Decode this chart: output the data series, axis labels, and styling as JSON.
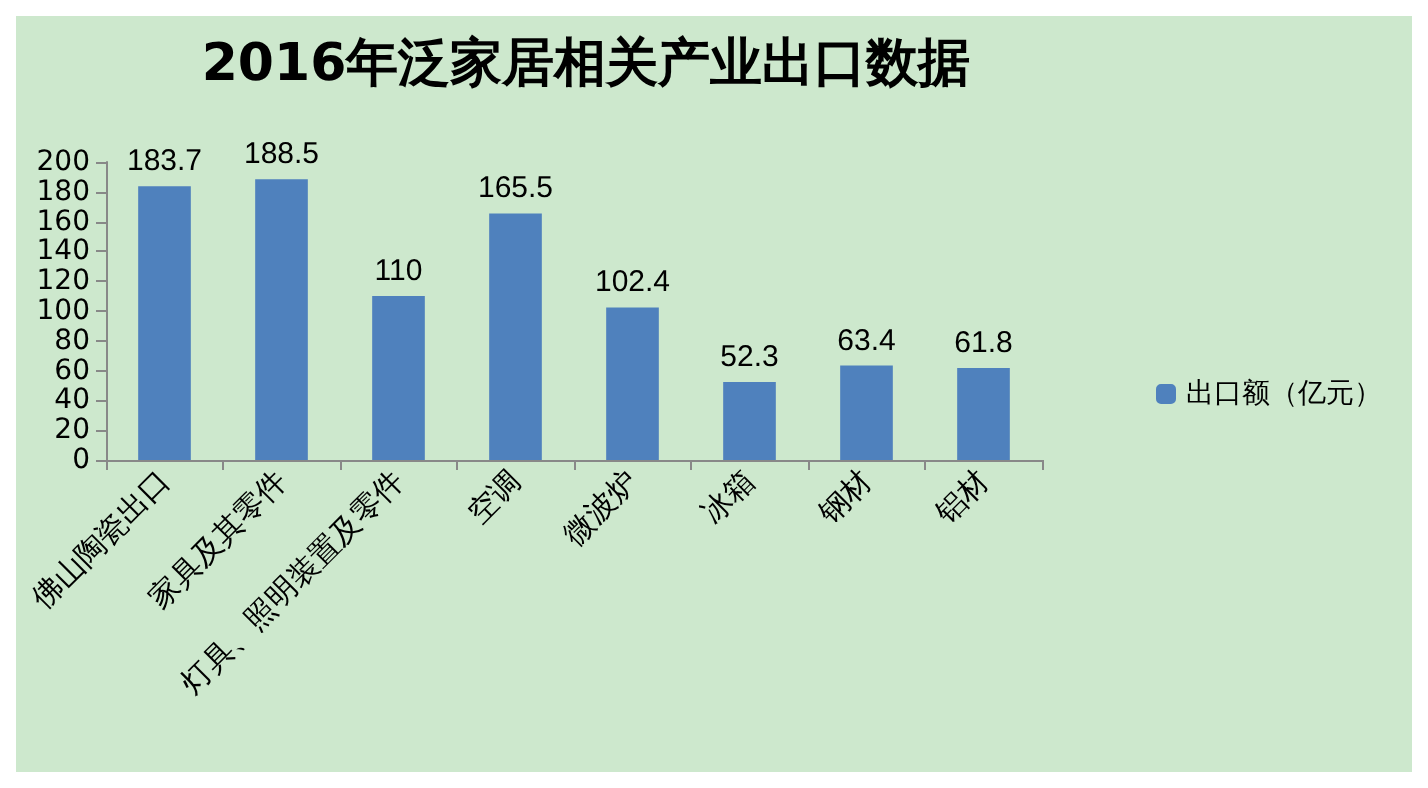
{
  "chart_data": {
    "type": "bar",
    "title": "2016年泛家居相关产业出口数据",
    "categories": [
      "佛山陶瓷出口",
      "家具及其零件",
      "灯具、照明装置及零件",
      "空调",
      "微波炉",
      "冰箱",
      "钢材",
      "铝材"
    ],
    "series": [
      {
        "name": "出口额（亿元）",
        "color": "#4f81bd",
        "values": [
          183.7,
          188.5,
          110,
          165.5,
          102.4,
          52.3,
          63.4,
          61.8
        ]
      }
    ],
    "ylim": [
      0,
      200
    ],
    "yticks": [
      0,
      20,
      40,
      60,
      80,
      100,
      120,
      140,
      160,
      180,
      200
    ],
    "data_labels": true,
    "grid": false,
    "legend": "right"
  }
}
